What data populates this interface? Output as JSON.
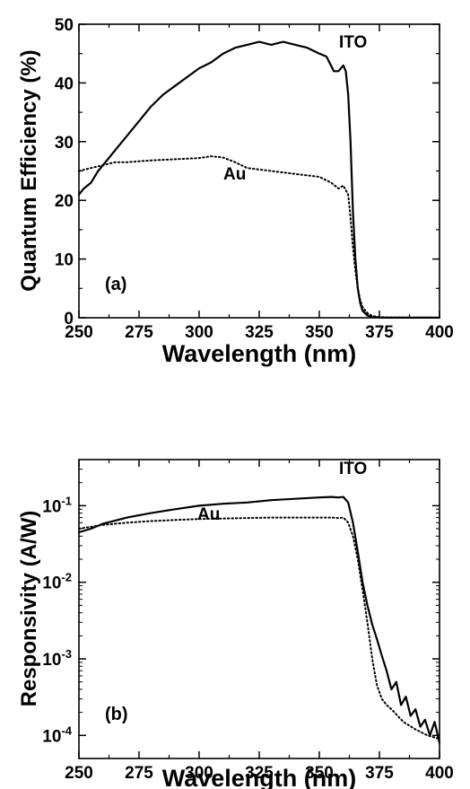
{
  "chart_data": [
    {
      "type": "line",
      "panel_label": "(a)",
      "xlabel": "Wavelength (nm)",
      "ylabel": "Quantum Efficiency (%)",
      "xlim": [
        250,
        400
      ],
      "ylim": [
        0,
        50
      ],
      "y_scale": "linear",
      "x_ticks": [
        250,
        275,
        300,
        325,
        350,
        375,
        400
      ],
      "y_ticks": [
        0,
        10,
        20,
        30,
        40,
        50
      ],
      "grid": false,
      "series": [
        {
          "name": "ITO",
          "line_style": "solid",
          "x": [
            250,
            252,
            255,
            258,
            262,
            266,
            270,
            275,
            280,
            285,
            290,
            295,
            300,
            305,
            310,
            315,
            320,
            325,
            330,
            335,
            340,
            345,
            350,
            353,
            356,
            358,
            360,
            361,
            362,
            363,
            364,
            365,
            366,
            367,
            368,
            370,
            372,
            375,
            380,
            390,
            400
          ],
          "y": [
            21,
            22,
            23,
            25,
            27,
            29,
            31,
            33.5,
            36,
            38,
            39.5,
            41,
            42.5,
            43.5,
            45,
            46,
            46.5,
            47,
            46.5,
            47,
            46.5,
            46,
            45,
            44.5,
            42,
            42,
            43,
            42,
            38,
            30,
            18,
            10,
            5,
            2.5,
            1.2,
            0.4,
            0.1,
            0.05,
            0.02,
            0.01,
            0.01
          ]
        },
        {
          "name": "Au",
          "line_style": "dotted",
          "x": [
            250,
            255,
            260,
            265,
            270,
            280,
            290,
            300,
            305,
            310,
            315,
            320,
            330,
            340,
            350,
            355,
            358,
            360,
            362,
            363,
            364,
            365,
            366,
            367,
            368,
            370,
            372,
            375,
            380,
            390,
            400
          ],
          "y": [
            25,
            25.5,
            26,
            26.5,
            26.5,
            26.8,
            27,
            27.2,
            27.5,
            27.3,
            26.5,
            25.5,
            25,
            24.5,
            24,
            23,
            22,
            22.5,
            21,
            17,
            12,
            8,
            5,
            3,
            1.8,
            0.8,
            0.3,
            0.1,
            0.05,
            0.02,
            0.01
          ]
        }
      ],
      "annotations": [
        "ITO",
        "Au",
        "(a)"
      ]
    },
    {
      "type": "line",
      "panel_label": "(b)",
      "xlabel": "Wavelength (nm)",
      "ylabel": "Responsivity (A/W)",
      "xlim": [
        250,
        400
      ],
      "ylim": [
        5e-05,
        0.4
      ],
      "y_scale": "log",
      "x_ticks": [
        250,
        275,
        300,
        325,
        350,
        375,
        400
      ],
      "y_ticks": [
        0.0001,
        0.001,
        0.01,
        0.1
      ],
      "y_tick_labels": [
        {
          "base": "10",
          "exp": "-4"
        },
        {
          "base": "10",
          "exp": "-3"
        },
        {
          "base": "10",
          "exp": "-2"
        },
        {
          "base": "10",
          "exp": "-1"
        }
      ],
      "grid": false,
      "series": [
        {
          "name": "ITO",
          "line_style": "solid",
          "x": [
            250,
            255,
            260,
            270,
            280,
            290,
            300,
            310,
            320,
            330,
            340,
            350,
            355,
            358,
            360,
            362,
            364,
            366,
            368,
            370,
            372,
            374,
            376,
            378,
            380,
            382,
            384,
            386,
            388,
            390,
            392,
            394,
            396,
            398,
            400
          ],
          "y": [
            0.045,
            0.05,
            0.058,
            0.07,
            0.08,
            0.09,
            0.1,
            0.106,
            0.11,
            0.118,
            0.123,
            0.128,
            0.13,
            0.128,
            0.13,
            0.11,
            0.06,
            0.025,
            0.01,
            0.005,
            0.0028,
            0.0018,
            0.0011,
            0.0007,
            0.0004,
            0.0005,
            0.00025,
            0.00032,
            0.00018,
            0.00022,
            0.00013,
            0.00016,
            0.0001,
            0.00015,
            8e-05
          ]
        },
        {
          "name": "Au",
          "line_style": "dotted",
          "x": [
            250,
            255,
            260,
            270,
            280,
            290,
            300,
            310,
            320,
            330,
            340,
            350,
            355,
            358,
            360,
            362,
            364,
            366,
            368,
            370,
            372,
            374,
            376,
            378,
            380,
            385,
            390,
            395,
            400
          ],
          "y": [
            0.05,
            0.053,
            0.056,
            0.06,
            0.063,
            0.065,
            0.067,
            0.068,
            0.069,
            0.07,
            0.07,
            0.07,
            0.07,
            0.069,
            0.07,
            0.06,
            0.04,
            0.02,
            0.008,
            0.003,
            0.001,
            0.00045,
            0.0003,
            0.00025,
            0.00022,
            0.00015,
            0.00012,
            0.0001,
            9e-05
          ]
        }
      ],
      "annotations": [
        "ITO",
        "Au",
        "(b)"
      ]
    }
  ]
}
